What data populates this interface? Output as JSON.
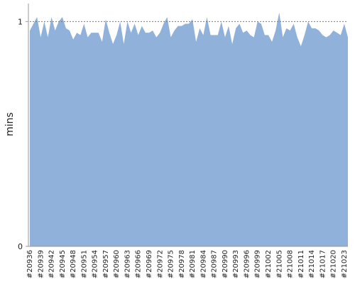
{
  "chart_data": {
    "type": "area",
    "y_label": "mins",
    "color": "#8fb1da",
    "categories": [
      "#20936",
      null,
      null,
      "#20939",
      null,
      null,
      "#20942",
      null,
      null,
      "#20945",
      null,
      null,
      "#20948",
      null,
      null,
      "#20951",
      null,
      null,
      "#20954",
      null,
      null,
      "#20957",
      null,
      null,
      "#20960",
      null,
      null,
      "#20963",
      null,
      null,
      "#20966",
      null,
      null,
      "#20969",
      null,
      null,
      "#20972",
      null,
      null,
      "#20975",
      null,
      null,
      "#20978",
      null,
      null,
      "#20981",
      null,
      null,
      "#20984",
      null,
      null,
      "#20987",
      null,
      null,
      "#20990",
      null,
      null,
      "#20993",
      null,
      null,
      "#20996",
      null,
      null,
      "#20999",
      null,
      null,
      "#21002",
      null,
      null,
      "#21005",
      null,
      null,
      "#21008",
      null,
      null,
      "#21011",
      null,
      null,
      "#21014",
      null,
      null,
      "#21017",
      null,
      null,
      "#21020",
      null,
      null,
      "#21023",
      null
    ],
    "values": [
      0.96,
      0.99,
      1.02,
      0.93,
      1.0,
      0.93,
      1.02,
      0.96,
      1.0,
      1.02,
      0.97,
      0.96,
      0.92,
      0.95,
      0.94,
      0.99,
      0.93,
      0.95,
      0.95,
      0.95,
      0.91,
      1.01,
      0.95,
      0.9,
      0.94,
      1.0,
      0.9,
      1.0,
      0.95,
      0.99,
      0.94,
      0.98,
      0.95,
      0.95,
      0.96,
      0.93,
      0.95,
      0.99,
      1.02,
      0.93,
      0.96,
      0.98,
      0.98,
      0.99,
      0.99,
      1.01,
      0.91,
      0.97,
      0.94,
      1.02,
      0.94,
      0.94,
      0.94,
      1.0,
      0.93,
      0.98,
      0.9,
      0.97,
      0.99,
      0.95,
      0.96,
      0.94,
      0.93,
      1.0,
      0.99,
      0.94,
      0.94,
      0.91,
      0.96,
      1.04,
      0.93,
      0.97,
      0.96,
      0.99,
      0.93,
      0.89,
      0.94,
      1.0,
      0.97,
      0.97,
      0.96,
      0.94,
      0.93,
      0.94,
      0.96,
      0.95,
      0.94,
      0.99,
      0.93
    ],
    "ylim": [
      0,
      1.08
    ],
    "yticks": [
      0,
      1
    ],
    "grid": true
  }
}
